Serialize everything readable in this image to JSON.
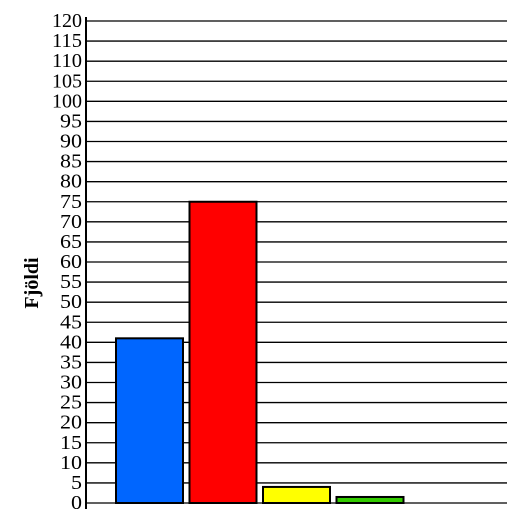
{
  "chart_data": {
    "type": "bar",
    "ylabel": "Fjöldi",
    "ylim": [
      0,
      120
    ],
    "ytick_step": 5,
    "grid": true,
    "values": [
      41,
      75,
      4,
      1.5
    ],
    "colors": [
      "#0066ff",
      "#ff0000",
      "#ffff00",
      "#33cc00"
    ]
  }
}
